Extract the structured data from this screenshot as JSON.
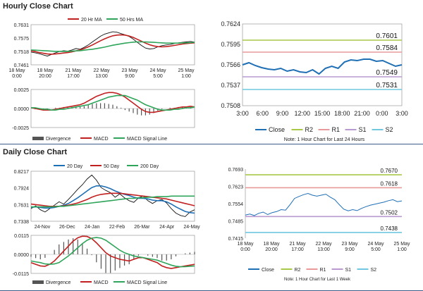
{
  "sections": {
    "hourly_title": "Hourly Close Chart",
    "daily_title": "Daily Close Chart"
  },
  "colors": {
    "close": "#1f6fb5",
    "ma_short": "#c0201f",
    "ma_long": "#2ea55a",
    "r2": "#a8c84a",
    "r1": "#e89a9a",
    "s1": "#b89ad0",
    "s2": "#6fc8e0",
    "macd_line": "#c0201f",
    "signal_line": "#2ea55a",
    "divergence": "#555555"
  },
  "chart_data": [
    {
      "id": "hourly_price",
      "type": "line",
      "legend": [
        "20 Hr MA",
        "50 Hrs MA"
      ],
      "yticks": [
        "0.7631",
        "0.7575",
        "0.7518",
        "0.7461"
      ],
      "ylim": [
        0.7461,
        0.7631
      ],
      "xticks": [
        "18 May\n0:00",
        "18 May\n20:00",
        "21 May\n17:00",
        "22 May\n13:00",
        "23 May\n9:00",
        "24 May\n5:00",
        "25 May\n1:00"
      ],
      "series": [
        {
          "name": "Close",
          "values": [
            0.7515,
            0.7512,
            0.7508,
            0.7503,
            0.7498,
            0.7505,
            0.7512,
            0.7518,
            0.7521,
            0.7519,
            0.7524,
            0.753,
            0.7527,
            0.7535,
            0.7545,
            0.7558,
            0.757,
            0.7582,
            0.7591,
            0.7596,
            0.7601,
            0.7599,
            0.7593,
            0.7588,
            0.7581,
            0.757,
            0.7556,
            0.7543,
            0.7532,
            0.7528,
            0.753,
            0.7537,
            0.7542,
            0.7545,
            0.7547,
            0.7551,
            0.7554,
            0.7556,
            0.7558,
            0.756,
            0.7557
          ]
        },
        {
          "name": "20 Hr MA",
          "values": [
            0.752,
            0.7517,
            0.7513,
            0.751,
            0.7507,
            0.7506,
            0.7507,
            0.7509,
            0.7511,
            0.7513,
            0.7516,
            0.752,
            0.7524,
            0.753,
            0.7537,
            0.7545,
            0.7554,
            0.7563,
            0.7571,
            0.7578,
            0.7584,
            0.7587,
            0.7588,
            0.7587,
            0.7583,
            0.7577,
            0.7569,
            0.7561,
            0.7553,
            0.7546,
            0.7541,
            0.7538,
            0.7537,
            0.7538,
            0.754,
            0.7543,
            0.7546,
            0.7549,
            0.7551,
            0.7553,
            0.7554
          ]
        },
        {
          "name": "50 Hrs MA",
          "values": [
            0.7524,
            0.7523,
            0.7522,
            0.7521,
            0.752,
            0.7519,
            0.7518,
            0.7518,
            0.7518,
            0.7518,
            0.7519,
            0.752,
            0.7521,
            0.7523,
            0.7525,
            0.7527,
            0.753,
            0.7533,
            0.7536,
            0.754,
            0.7544,
            0.7547,
            0.755,
            0.7553,
            0.7555,
            0.7557,
            0.7558,
            0.7558,
            0.7558,
            0.7557,
            0.7556,
            0.7555,
            0.7554,
            0.7553,
            0.7553,
            0.7553,
            0.7553,
            0.7554,
            0.7554,
            0.7555,
            0.7556
          ]
        }
      ]
    },
    {
      "id": "hourly_macd",
      "type": "bar",
      "legend": [
        "Divergence",
        "MACD",
        "MACD Signal Line"
      ],
      "yticks": [
        "0.0025",
        "0.0000",
        "-0.0025"
      ],
      "ylim": [
        -0.0025,
        0.0025
      ],
      "series": [
        {
          "name": "MACD",
          "values": [
            0.0001,
            0.0,
            -0.0001,
            -0.0002,
            -0.0002,
            -0.0002,
            -0.0001,
            0.0,
            0.0001,
            0.0002,
            0.0003,
            0.0004,
            0.0005,
            0.0007,
            0.001,
            0.0013,
            0.0016,
            0.0018,
            0.002,
            0.0021,
            0.0021,
            0.002,
            0.0018,
            0.0015,
            0.0011,
            0.0007,
            0.0003,
            -0.0001,
            -0.0004,
            -0.0005,
            -0.0005,
            -0.0004,
            -0.0003,
            -0.0002,
            -0.0001,
            0.0,
            0.0001,
            0.0002,
            0.0002,
            0.0003,
            0.0002
          ]
        },
        {
          "name": "MACD Signal Line",
          "values": [
            0.0001,
            0.0001,
            0.0,
            -0.0001,
            -0.0001,
            -0.0002,
            -0.0002,
            -0.0001,
            -0.0001,
            0.0,
            0.0001,
            0.0002,
            0.0003,
            0.0004,
            0.0005,
            0.0007,
            0.0009,
            0.0011,
            0.0013,
            0.0015,
            0.0016,
            0.0017,
            0.0017,
            0.0017,
            0.0015,
            0.0013,
            0.0011,
            0.0008,
            0.0005,
            0.0003,
            0.0001,
            -0.0001,
            -0.0002,
            -0.0002,
            -0.0002,
            -0.0001,
            -0.0001,
            0.0,
            0.0001,
            0.0001,
            0.0002
          ]
        }
      ]
    },
    {
      "id": "hourly_24h",
      "type": "line",
      "yticks": [
        "0.7624",
        "0.7595",
        "0.7566",
        "0.7537",
        "0.7508"
      ],
      "ylim": [
        0.7508,
        0.7624
      ],
      "xticks": [
        "3:00",
        "6:00",
        "9:00",
        "12:00",
        "15:00",
        "18:00",
        "21:00",
        "0:00",
        "3:00"
      ],
      "levels": [
        {
          "name": "R2",
          "value": 0.7601,
          "label": "0.7601"
        },
        {
          "name": "R1",
          "value": 0.7584,
          "label": "0.7584"
        },
        {
          "name": "S1",
          "value": 0.7549,
          "label": "0.7549"
        },
        {
          "name": "S2",
          "value": 0.7531,
          "label": "0.7531"
        }
      ],
      "series": [
        {
          "name": "Close",
          "values": [
            0.7566,
            0.7569,
            0.7565,
            0.7562,
            0.756,
            0.7559,
            0.7561,
            0.7557,
            0.7559,
            0.7556,
            0.7555,
            0.7559,
            0.7553,
            0.7561,
            0.7564,
            0.7561,
            0.757,
            0.7573,
            0.7572,
            0.7574,
            0.7574,
            0.7571,
            0.7572,
            0.7568,
            0.7564,
            0.7566
          ]
        }
      ],
      "legend": [
        "Close",
        "R2",
        "R1",
        "S1",
        "S2"
      ],
      "note": "Note: 1 Hour Chart for Last 24 Hours"
    },
    {
      "id": "daily_price",
      "type": "line",
      "legend": [
        "20 Day",
        "50 Day",
        "200 Day"
      ],
      "yticks": [
        "0.8217",
        "0.7924",
        "0.7631",
        "0.7338"
      ],
      "ylim": [
        0.7338,
        0.8217
      ],
      "xticks": [
        "24-Nov",
        "26-Dec",
        "24-Jan",
        "22-Feb",
        "26-Mar",
        "24-Apr",
        "24-May"
      ],
      "series": [
        {
          "name": "Close",
          "values": [
            0.756,
            0.761,
            0.754,
            0.75,
            0.756,
            0.762,
            0.768,
            0.764,
            0.772,
            0.781,
            0.79,
            0.798,
            0.808,
            0.815,
            0.806,
            0.793,
            0.788,
            0.784,
            0.776,
            0.782,
            0.775,
            0.77,
            0.767,
            0.775,
            0.778,
            0.77,
            0.765,
            0.77,
            0.772,
            0.766,
            0.756,
            0.748,
            0.744,
            0.742,
            0.75,
            0.754
          ]
        },
        {
          "name": "20 Day",
          "values": [
            0.758,
            0.759,
            0.758,
            0.757,
            0.757,
            0.758,
            0.76,
            0.762,
            0.765,
            0.77,
            0.775,
            0.781,
            0.787,
            0.793,
            0.796,
            0.796,
            0.794,
            0.791,
            0.787,
            0.784,
            0.781,
            0.779,
            0.776,
            0.774,
            0.774,
            0.773,
            0.771,
            0.77,
            0.77,
            0.768,
            0.764,
            0.759,
            0.755,
            0.751,
            0.749,
            0.748
          ]
        },
        {
          "name": "50 Day",
          "values": [
            0.764,
            0.763,
            0.762,
            0.761,
            0.76,
            0.76,
            0.76,
            0.761,
            0.762,
            0.764,
            0.766,
            0.769,
            0.772,
            0.776,
            0.779,
            0.781,
            0.782,
            0.783,
            0.783,
            0.783,
            0.782,
            0.781,
            0.78,
            0.779,
            0.778,
            0.777,
            0.776,
            0.775,
            0.774,
            0.773,
            0.771,
            0.769,
            0.767,
            0.765,
            0.763,
            0.761
          ]
        },
        {
          "name": "200 Day",
          "values": [
            0.759,
            0.759,
            0.759,
            0.759,
            0.759,
            0.759,
            0.76,
            0.76,
            0.761,
            0.762,
            0.763,
            0.764,
            0.765,
            0.766,
            0.767,
            0.768,
            0.769,
            0.77,
            0.771,
            0.772,
            0.773,
            0.774,
            0.774,
            0.775,
            0.775,
            0.776,
            0.776,
            0.777,
            0.777,
            0.777,
            0.778,
            0.778,
            0.778,
            0.778,
            0.778,
            0.778
          ]
        }
      ]
    },
    {
      "id": "daily_macd",
      "type": "bar",
      "legend": [
        "Divergence",
        "MACD",
        "MACD Signal Line"
      ],
      "yticks": [
        "0.0115",
        "0.0000",
        "-0.0115"
      ],
      "ylim": [
        -0.0115,
        0.0115
      ],
      "series": [
        {
          "name": "MACD",
          "values": [
            -0.005,
            -0.006,
            -0.007,
            -0.0072,
            -0.006,
            -0.004,
            -0.001,
            0.002,
            0.005,
            0.008,
            0.01,
            0.011,
            0.0108,
            0.0095,
            0.007,
            0.004,
            0.001,
            -0.001,
            -0.002,
            -0.003,
            -0.0035,
            -0.004,
            -0.003,
            -0.002,
            -0.002,
            -0.003,
            -0.004,
            -0.005,
            -0.007,
            -0.008,
            -0.0085,
            -0.008,
            -0.0075,
            -0.007,
            -0.0065,
            -0.006
          ]
        },
        {
          "name": "MACD Signal Line",
          "values": [
            -0.004,
            -0.0045,
            -0.005,
            -0.0058,
            -0.006,
            -0.0058,
            -0.005,
            -0.003,
            -0.001,
            0.0015,
            0.004,
            0.0065,
            0.0085,
            0.0098,
            0.0102,
            0.0098,
            0.0085,
            0.0065,
            0.0045,
            0.0025,
            0.001,
            0.0,
            -0.001,
            -0.0015,
            -0.002,
            -0.0025,
            -0.003,
            -0.0035,
            -0.0045,
            -0.0055,
            -0.0065,
            -0.0072,
            -0.0075,
            -0.0074,
            -0.0072,
            -0.007
          ]
        }
      ]
    },
    {
      "id": "daily_week",
      "type": "line",
      "yticks": [
        "0.7693",
        "0.7623",
        "0.7554",
        "0.7485",
        "0.7415"
      ],
      "ylim": [
        0.7415,
        0.7693
      ],
      "xticks": [
        "18 May\n0:00",
        "18 May\n20:00",
        "21 May\n17:00",
        "22 May\n13:00",
        "23 May\n9:00",
        "24 May\n5:00",
        "25 May\n1:00"
      ],
      "levels": [
        {
          "name": "R2",
          "value": 0.767,
          "label": "0.7670"
        },
        {
          "name": "R1",
          "value": 0.7618,
          "label": "0.7618"
        },
        {
          "name": "S1",
          "value": 0.7502,
          "label": "0.7502"
        },
        {
          "name": "S2",
          "value": 0.7438,
          "label": "0.7438"
        }
      ],
      "series": [
        {
          "name": "Close",
          "values": [
            0.7508,
            0.7512,
            0.7506,
            0.7515,
            0.752,
            0.751,
            0.7518,
            0.7522,
            0.753,
            0.7528,
            0.755,
            0.7575,
            0.7583,
            0.759,
            0.7595,
            0.7588,
            0.7584,
            0.7588,
            0.7592,
            0.758,
            0.757,
            0.755,
            0.7532,
            0.7525,
            0.753,
            0.7526,
            0.7535,
            0.7542,
            0.7548,
            0.7552,
            0.7556,
            0.756,
            0.7566,
            0.757,
            0.7562,
            0.7565
          ]
        }
      ],
      "legend": [
        "Close",
        "R2",
        "R1",
        "S1",
        "S2"
      ],
      "note": "Note: 1 Hour Chart for Last 1 Week"
    }
  ]
}
